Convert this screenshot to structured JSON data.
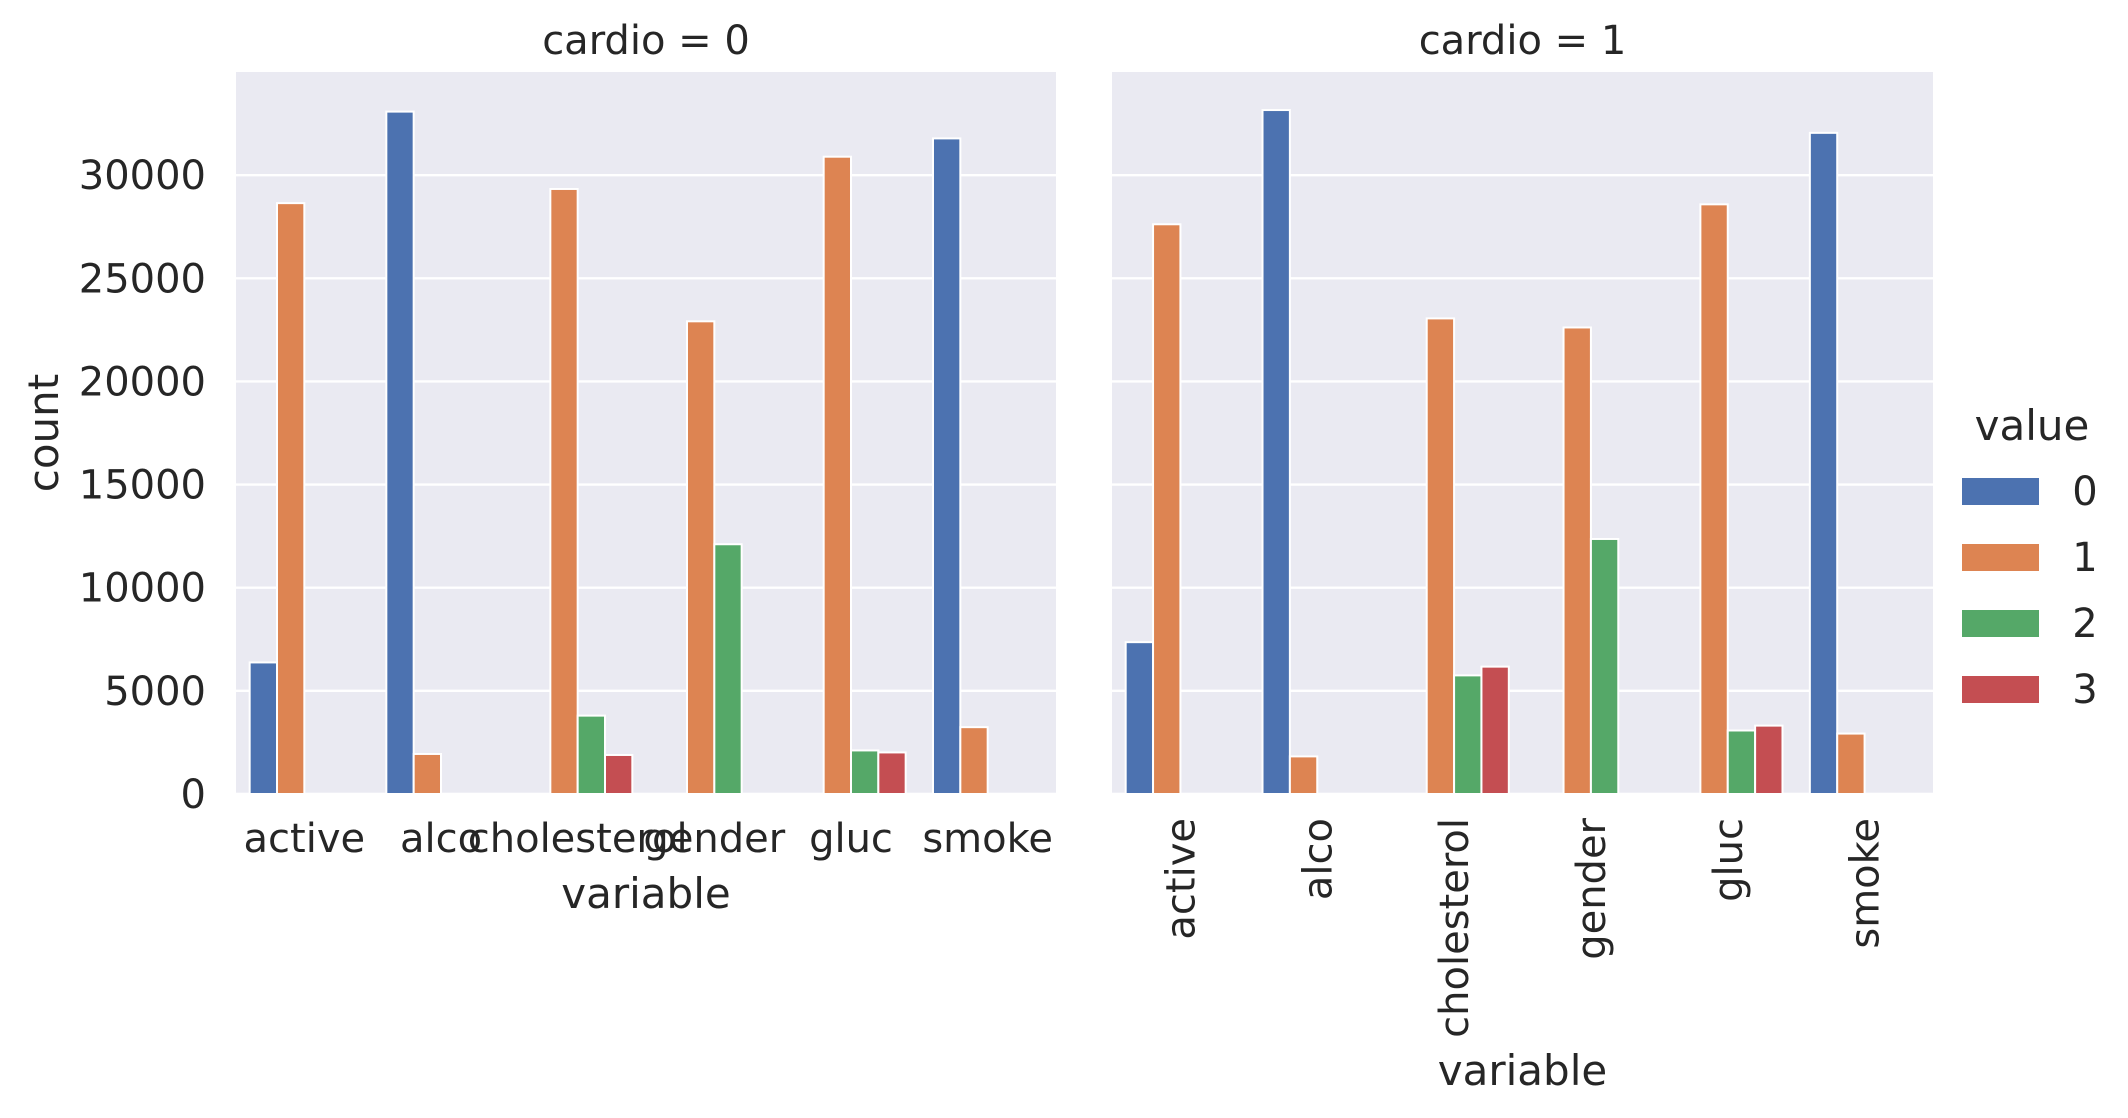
{
  "chart_data": {
    "type": "bar",
    "ylabel": "count",
    "ylim": [
      0,
      35000
    ],
    "yticks": [
      0,
      5000,
      10000,
      15000,
      20000,
      25000,
      30000
    ],
    "grid": true,
    "legend": {
      "title": "value",
      "placement": "right",
      "entries": [
        "0",
        "1",
        "2",
        "3"
      ],
      "colors": [
        "#4c72b0",
        "#dd8452",
        "#55a868",
        "#c44e52"
      ]
    },
    "facets": [
      {
        "title": "cardio = 0",
        "xlabel": "variable",
        "categories": [
          "active",
          "alco",
          "cholesterol",
          "gender",
          "gluc",
          "smoke"
        ],
        "tick_rotation": 0,
        "series": [
          {
            "name": "0",
            "values": [
              6378,
              33080,
              null,
              null,
              null,
              31781
            ]
          },
          {
            "name": "1",
            "values": [
              28643,
              1941,
              29330,
              22914,
              30894,
              3240
            ]
          },
          {
            "name": "2",
            "values": [
              null,
              null,
              3799,
              12107,
              2112,
              null
            ]
          },
          {
            "name": "3",
            "values": [
              null,
              null,
              1892,
              null,
              2015,
              null
            ]
          }
        ]
      },
      {
        "title": "cardio = 1",
        "xlabel": "variable",
        "categories": [
          "active",
          "alco",
          "cholesterol",
          "gender",
          "gluc",
          "smoke"
        ],
        "tick_rotation": -90,
        "series": [
          {
            "name": "0",
            "values": [
              7361,
              33156,
              null,
              null,
              null,
              32050
            ]
          },
          {
            "name": "1",
            "values": [
              27618,
              1823,
              23055,
              22616,
              28585,
              2929
            ]
          },
          {
            "name": "2",
            "values": [
              null,
              null,
              5750,
              12363,
              3079,
              null
            ]
          },
          {
            "name": "3",
            "values": [
              null,
              null,
              6174,
              null,
              3315,
              null
            ]
          }
        ]
      }
    ]
  }
}
